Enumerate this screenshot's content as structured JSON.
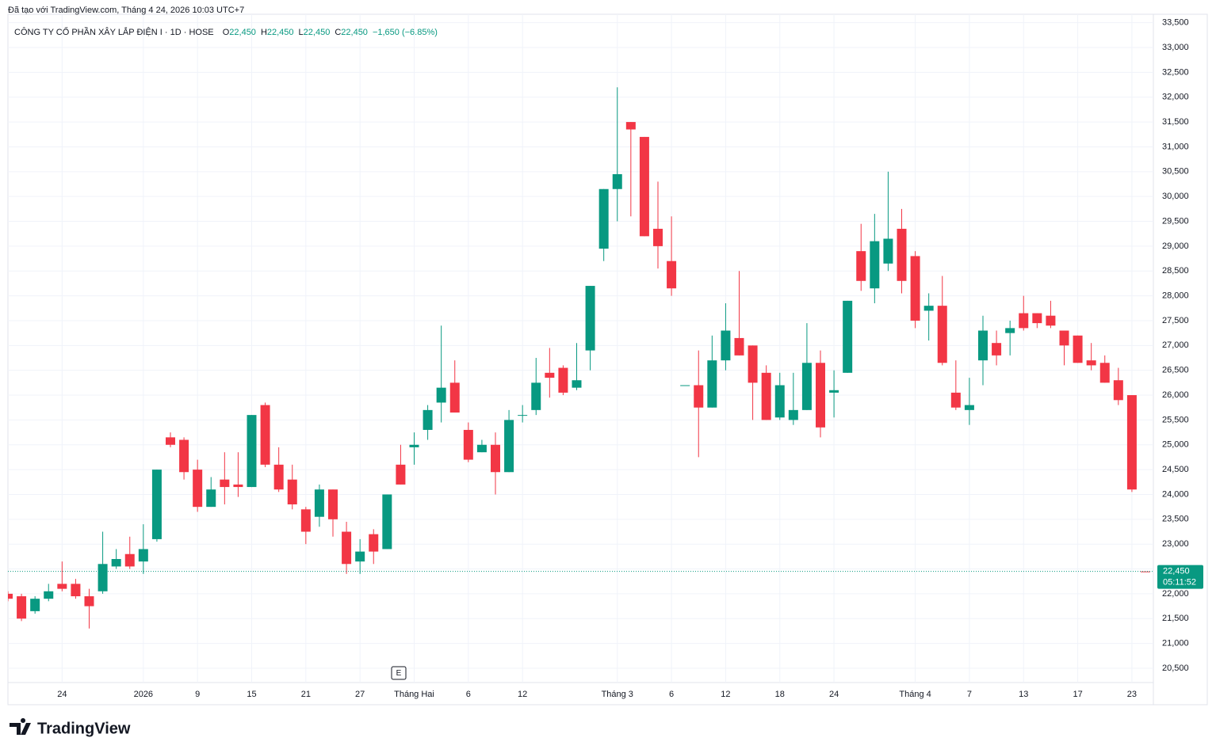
{
  "chart_data": {
    "type": "candlestick",
    "header": "Đã tạo với TradingView.com, Tháng 4 24, 2026 10:03 UTC+7",
    "symbol": "CÔNG TY CỔ PHẦN XÂY LẮP ĐIỆN I · 1D · HOSE",
    "ohlc_legend": [
      {
        "key": "O",
        "value": "22,450"
      },
      {
        "key": "H",
        "value": "22,450"
      },
      {
        "key": "L",
        "value": "22,450"
      },
      {
        "key": "C",
        "value": "22,450"
      }
    ],
    "change": "−1,650 (−6.85%)",
    "categories": [
      null,
      null,
      null,
      null,
      "24",
      null,
      null,
      null,
      null,
      null,
      "2026",
      null,
      null,
      null,
      "9",
      null,
      null,
      null,
      "15",
      null,
      null,
      null,
      "21",
      null,
      null,
      null,
      "27",
      null,
      null,
      null,
      "Tháng Hai",
      null,
      null,
      null,
      "6",
      null,
      null,
      null,
      "12",
      null,
      null,
      null,
      null,
      null,
      null,
      "Tháng 3",
      null,
      null,
      null,
      "6",
      null,
      null,
      null,
      "12",
      null,
      null,
      null,
      "18",
      null,
      null,
      null,
      "24",
      null,
      null,
      null,
      null,
      null,
      "Tháng 4",
      null,
      null,
      null,
      "7",
      null,
      null,
      null,
      "13",
      null,
      null,
      null,
      "17",
      null,
      null,
      null,
      "23",
      null
    ],
    "open": [
      22000,
      21950,
      21650,
      21900,
      22200,
      22200,
      21950,
      22050,
      22550,
      22800,
      22650,
      23100,
      25150,
      25100,
      24500,
      23750,
      24300,
      24200,
      24150,
      25800,
      24600,
      24300,
      23700,
      23550,
      24100,
      23250,
      22650,
      23200,
      22900,
      24600,
      24950,
      25300,
      25850,
      26250,
      25300,
      24850,
      25000,
      24450,
      25600,
      25700,
      26450,
      26550,
      26150,
      26900,
      28950,
      30150,
      31500,
      31200,
      29350,
      28700,
      26200,
      26200,
      25750,
      26700,
      27150,
      27000,
      26450,
      25550,
      25500,
      25700,
      26650,
      26050,
      26450,
      28900,
      28150,
      28650,
      29350,
      28800,
      27700,
      27800,
      26050,
      25700,
      26700,
      27050,
      27250,
      27650,
      27650,
      27600,
      27300,
      27200,
      26700,
      26650,
      26300,
      26000,
      22450
    ],
    "high": [
      22050,
      22000,
      21950,
      22200,
      22650,
      22300,
      22100,
      23250,
      22900,
      23150,
      23400,
      24500,
      25250,
      25150,
      24700,
      24350,
      24850,
      24850,
      25600,
      25850,
      24950,
      24600,
      23750,
      24200,
      24100,
      23450,
      23100,
      23300,
      24000,
      25000,
      25250,
      25800,
      27400,
      26700,
      25450,
      25100,
      25250,
      25700,
      25800,
      26750,
      26950,
      26600,
      27050,
      28200,
      30150,
      32200,
      31500,
      31200,
      30300,
      29600,
      26200,
      26900,
      27200,
      27850,
      28500,
      27000,
      26600,
      26450,
      26450,
      27450,
      26900,
      26500,
      27900,
      29450,
      29650,
      30500,
      29750,
      28900,
      28050,
      28400,
      26700,
      26350,
      27600,
      27300,
      27500,
      28000,
      27650,
      27900,
      27300,
      27200,
      27050,
      26800,
      26550,
      26000,
      22450
    ],
    "low": [
      21850,
      21450,
      21600,
      21850,
      22050,
      21900,
      21300,
      22000,
      22500,
      22500,
      22400,
      23050,
      24950,
      24300,
      23650,
      23750,
      23800,
      23950,
      24150,
      24550,
      24050,
      23700,
      23000,
      23350,
      23150,
      22400,
      22400,
      22600,
      22900,
      24200,
      24600,
      25100,
      25450,
      25650,
      24650,
      24850,
      24000,
      24450,
      25450,
      25600,
      25950,
      26000,
      26100,
      26500,
      28700,
      29500,
      29600,
      29200,
      28550,
      28000,
      26200,
      24750,
      25750,
      26500,
      26800,
      25500,
      25500,
      25500,
      25400,
      25700,
      25150,
      25550,
      26450,
      28100,
      27850,
      28500,
      28050,
      27350,
      27100,
      26600,
      25700,
      25400,
      26200,
      26600,
      26800,
      27300,
      27350,
      27350,
      26600,
      26650,
      26500,
      26250,
      25800,
      24050,
      22450
    ],
    "close": [
      21900,
      21500,
      21900,
      22050,
      22100,
      21950,
      21750,
      22600,
      22700,
      22550,
      22900,
      24500,
      25000,
      24450,
      23750,
      24100,
      24150,
      24150,
      25600,
      24600,
      24100,
      23800,
      23250,
      24100,
      23500,
      22600,
      22850,
      22850,
      24000,
      24200,
      25000,
      25700,
      26150,
      25650,
      24700,
      25000,
      24450,
      25500,
      25600,
      26250,
      26350,
      26050,
      26300,
      28200,
      30150,
      30450,
      31350,
      29200,
      29000,
      28150,
      26200,
      25750,
      26700,
      27300,
      26800,
      26250,
      25500,
      26200,
      25700,
      26650,
      25350,
      26100,
      27900,
      28300,
      29100,
      29150,
      28300,
      27500,
      27800,
      26650,
      25750,
      25800,
      27300,
      26800,
      27350,
      27350,
      27450,
      27400,
      27000,
      26650,
      26600,
      26250,
      25900,
      24100,
      22450
    ],
    "up_color": "#089981",
    "down_color": "#f23645",
    "ylim": [
      20200,
      33670
    ],
    "yticks": [
      {
        "value": 20500,
        "label": "20,500"
      },
      {
        "value": 21000,
        "label": "21,000"
      },
      {
        "value": 21500,
        "label": "21,500"
      },
      {
        "value": 22000,
        "label": "22,000"
      },
      {
        "value": 22500,
        "label": "22,500"
      },
      {
        "value": 23000,
        "label": "23,000"
      },
      {
        "value": 23500,
        "label": "23,500"
      },
      {
        "value": 24000,
        "label": "24,000"
      },
      {
        "value": 24500,
        "label": "24,500"
      },
      {
        "value": 25000,
        "label": "25,000"
      },
      {
        "value": 25500,
        "label": "25,500"
      },
      {
        "value": 26000,
        "label": "26,000"
      },
      {
        "value": 26500,
        "label": "26,500"
      },
      {
        "value": 27000,
        "label": "27,000"
      },
      {
        "value": 27500,
        "label": "27,500"
      },
      {
        "value": 28000,
        "label": "28,000"
      },
      {
        "value": 28500,
        "label": "28,500"
      },
      {
        "value": 29000,
        "label": "29,000"
      },
      {
        "value": 29500,
        "label": "29,500"
      },
      {
        "value": 30000,
        "label": "30,000"
      },
      {
        "value": 30500,
        "label": "30,500"
      },
      {
        "value": 31000,
        "label": "31,000"
      },
      {
        "value": 31500,
        "label": "31,500"
      },
      {
        "value": 32000,
        "label": "32,000"
      },
      {
        "value": 32500,
        "label": "32,500"
      },
      {
        "value": 33000,
        "label": "33,000"
      },
      {
        "value": 33500,
        "label": "33,500"
      }
    ],
    "grid": true,
    "last_price": {
      "value": 22450,
      "label": "22,450"
    },
    "countdown": "05:11:52",
    "event_marker": "E",
    "logo": "TradingView"
  }
}
